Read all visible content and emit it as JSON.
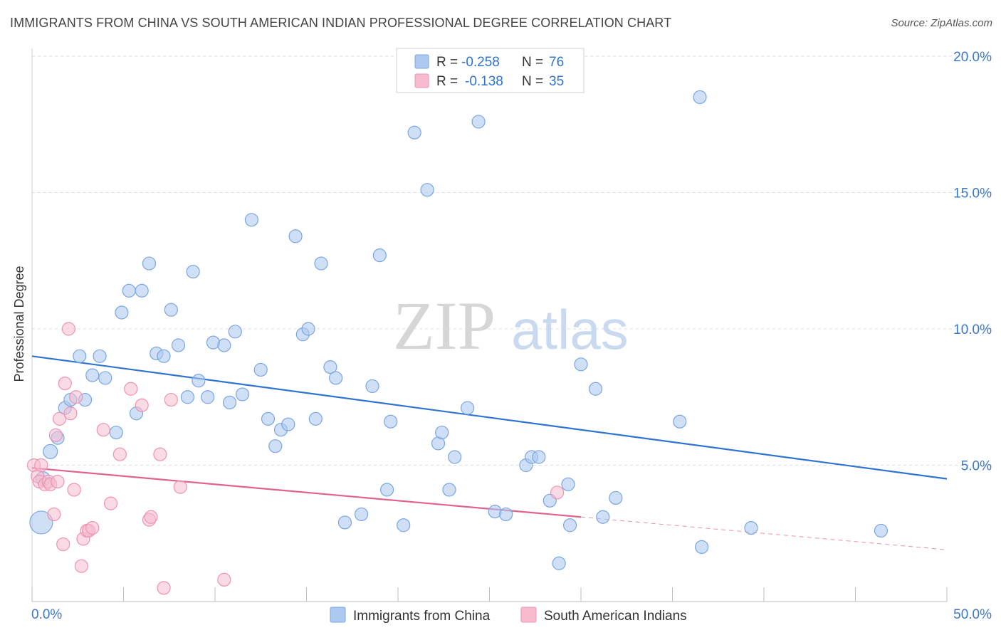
{
  "header": {
    "title": "IMMIGRANTS FROM CHINA VS SOUTH AMERICAN INDIAN PROFESSIONAL DEGREE CORRELATION CHART",
    "source": "Source: ZipAtlas.com"
  },
  "watermark": {
    "zip": "ZIP",
    "atlas": "atlas"
  },
  "legend_top": {
    "rows": [
      {
        "r_label": "R =",
        "r_value": "-0.258",
        "n_label": "N =",
        "n_value": "76"
      },
      {
        "r_label": "R =",
        "r_value": "-0.138",
        "n_label": "N =",
        "n_value": "35"
      }
    ]
  },
  "colors": {
    "blue_fill": "#aec9f0",
    "blue_stroke": "#7aa6e0",
    "blue_line": "#2f74d0",
    "pink_fill": "#f6bccd",
    "pink_stroke": "#ee93b0",
    "pink_line": "#e0628e",
    "axis_text": "#3a78c9",
    "grid": "#dddddd"
  },
  "chart_data": {
    "type": "scatter",
    "title": "IMMIGRANTS FROM CHINA VS SOUTH AMERICAN INDIAN PROFESSIONAL DEGREE CORRELATION CHART",
    "xlabel": "",
    "ylabel": "Professional Degree",
    "xlim": [
      0,
      50
    ],
    "ylim": [
      0,
      20
    ],
    "x_tick_labels": [
      "0.0%",
      "50.0%"
    ],
    "y_tick_labels": [
      "5.0%",
      "10.0%",
      "15.0%",
      "20.0%"
    ],
    "y_ticks": [
      5,
      10,
      15,
      20
    ],
    "grid": true,
    "legend_position": "top-center and bottom",
    "series": [
      {
        "name": "Immigrants from China",
        "r": -0.258,
        "n": 76,
        "trend": {
          "x": [
            0,
            50
          ],
          "y": [
            9.0,
            4.5
          ]
        },
        "points": [
          [
            0.5,
            2.9,
            16
          ],
          [
            0.6,
            4.5,
            10
          ],
          [
            1.0,
            5.5,
            10
          ],
          [
            1.4,
            6.0,
            9
          ],
          [
            1.8,
            7.1,
            9
          ],
          [
            2.1,
            7.4,
            9
          ],
          [
            2.6,
            9.0,
            9
          ],
          [
            2.9,
            7.4,
            9
          ],
          [
            3.3,
            8.3,
            9
          ],
          [
            3.7,
            9.0,
            9
          ],
          [
            4.0,
            8.2,
            9
          ],
          [
            4.6,
            6.2,
            9
          ],
          [
            4.9,
            10.6,
            9
          ],
          [
            5.3,
            11.4,
            9
          ],
          [
            5.7,
            6.9,
            9
          ],
          [
            6.0,
            11.4,
            9
          ],
          [
            6.4,
            12.4,
            9
          ],
          [
            6.8,
            9.1,
            9
          ],
          [
            7.2,
            9.0,
            9
          ],
          [
            7.6,
            10.7,
            9
          ],
          [
            8.0,
            9.4,
            9
          ],
          [
            8.5,
            7.5,
            9
          ],
          [
            8.8,
            12.1,
            9
          ],
          [
            9.1,
            8.1,
            9
          ],
          [
            9.6,
            7.5,
            9
          ],
          [
            9.9,
            9.5,
            9
          ],
          [
            10.5,
            9.4,
            9
          ],
          [
            10.8,
            7.3,
            9
          ],
          [
            11.1,
            9.9,
            9
          ],
          [
            11.5,
            7.6,
            9
          ],
          [
            12.0,
            14.0,
            9
          ],
          [
            12.5,
            8.5,
            9
          ],
          [
            12.9,
            6.7,
            9
          ],
          [
            13.3,
            5.7,
            9
          ],
          [
            13.6,
            6.3,
            9
          ],
          [
            14.0,
            6.5,
            9
          ],
          [
            14.4,
            13.4,
            9
          ],
          [
            14.8,
            9.8,
            9
          ],
          [
            15.1,
            10.0,
            9
          ],
          [
            15.5,
            6.7,
            9
          ],
          [
            15.8,
            12.4,
            9
          ],
          [
            16.3,
            8.6,
            9
          ],
          [
            16.6,
            8.2,
            9
          ],
          [
            17.1,
            2.9,
            9
          ],
          [
            18.0,
            3.2,
            9
          ],
          [
            18.6,
            7.9,
            9
          ],
          [
            19.0,
            12.7,
            9
          ],
          [
            19.4,
            4.1,
            9
          ],
          [
            19.6,
            6.6,
            9
          ],
          [
            20.3,
            2.8,
            9
          ],
          [
            20.9,
            17.2,
            9
          ],
          [
            21.6,
            15.1,
            9
          ],
          [
            22.2,
            5.8,
            9
          ],
          [
            22.4,
            6.2,
            9
          ],
          [
            22.8,
            4.1,
            9
          ],
          [
            23.1,
            5.3,
            9
          ],
          [
            23.8,
            7.1,
            9
          ],
          [
            24.4,
            17.6,
            9
          ],
          [
            25.3,
            3.3,
            9
          ],
          [
            25.9,
            3.2,
            9
          ],
          [
            27.0,
            5.0,
            9
          ],
          [
            27.3,
            5.3,
            9
          ],
          [
            27.7,
            5.3,
            9
          ],
          [
            28.3,
            3.7,
            9
          ],
          [
            28.8,
            1.4,
            9
          ],
          [
            29.3,
            4.3,
            9
          ],
          [
            29.4,
            2.8,
            9
          ],
          [
            30.0,
            8.7,
            9
          ],
          [
            30.8,
            7.8,
            9
          ],
          [
            31.2,
            3.1,
            9
          ],
          [
            31.9,
            3.8,
            9
          ],
          [
            35.4,
            6.6,
            9
          ],
          [
            36.5,
            18.5,
            9
          ],
          [
            36.6,
            2.0,
            9
          ],
          [
            39.3,
            2.7,
            9
          ],
          [
            46.4,
            2.6,
            9
          ]
        ]
      },
      {
        "name": "South American Indians",
        "r": -0.138,
        "n": 35,
        "trend": {
          "x": [
            0,
            30
          ],
          "y": [
            4.9,
            3.1
          ]
        },
        "trend_dashed": {
          "x": [
            30,
            50
          ],
          "y": [
            3.1,
            1.9
          ]
        },
        "points": [
          [
            0.1,
            5.0,
            9
          ],
          [
            0.3,
            4.6,
            9
          ],
          [
            0.4,
            4.4,
            9
          ],
          [
            0.5,
            5.0,
            9
          ],
          [
            0.7,
            4.3,
            9
          ],
          [
            0.9,
            4.4,
            9
          ],
          [
            1.0,
            4.3,
            9
          ],
          [
            1.2,
            3.2,
            9
          ],
          [
            1.3,
            6.1,
            9
          ],
          [
            1.4,
            4.4,
            9
          ],
          [
            1.5,
            6.7,
            9
          ],
          [
            1.7,
            2.1,
            9
          ],
          [
            1.8,
            8.0,
            9
          ],
          [
            2.0,
            10.0,
            9
          ],
          [
            2.1,
            6.9,
            9
          ],
          [
            2.3,
            4.1,
            9
          ],
          [
            2.4,
            7.5,
            9
          ],
          [
            2.7,
            1.3,
            9
          ],
          [
            2.8,
            2.3,
            9
          ],
          [
            3.0,
            2.6,
            9
          ],
          [
            3.1,
            2.6,
            9
          ],
          [
            3.3,
            2.7,
            9
          ],
          [
            3.9,
            6.3,
            9
          ],
          [
            4.3,
            3.6,
            9
          ],
          [
            4.8,
            5.4,
            9
          ],
          [
            5.4,
            7.8,
            9
          ],
          [
            6.0,
            7.2,
            9
          ],
          [
            6.4,
            3.0,
            9
          ],
          [
            6.5,
            3.1,
            9
          ],
          [
            7.0,
            5.4,
            9
          ],
          [
            7.2,
            0.5,
            9
          ],
          [
            7.6,
            7.4,
            9
          ],
          [
            8.1,
            4.2,
            9
          ],
          [
            10.5,
            0.8,
            9
          ],
          [
            28.7,
            4.0,
            9
          ]
        ]
      }
    ]
  },
  "legend_bottom": {
    "items": [
      {
        "label": "Immigrants from China"
      },
      {
        "label": "South American Indians"
      }
    ]
  }
}
